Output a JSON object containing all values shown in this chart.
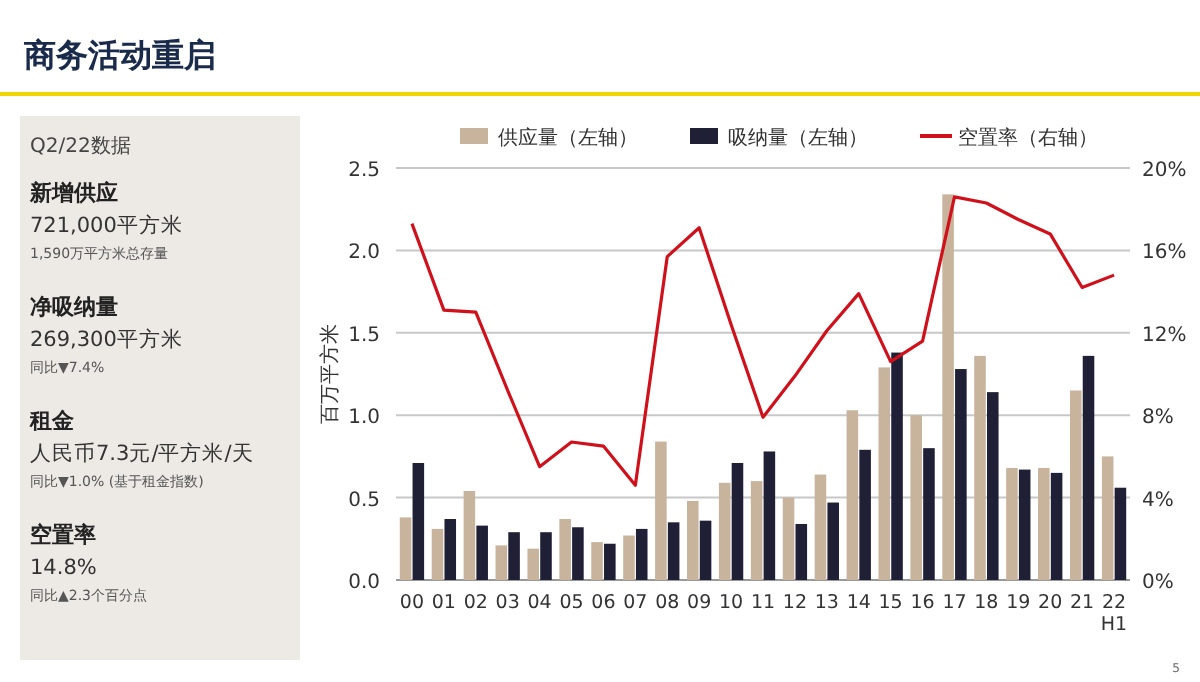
{
  "chart_data": [
    {
      "type": "bar",
      "title": "商务活动重启",
      "ylabel": "百万平方米",
      "legend": "top",
      "grid": "y",
      "categories": [
        "00",
        "01",
        "02",
        "03",
        "04",
        "05",
        "06",
        "07",
        "08",
        "09",
        "10",
        "11",
        "12",
        "13",
        "14",
        "15",
        "16",
        "17",
        "18",
        "19",
        "20",
        "21",
        "22 H1"
      ],
      "series": [
        {
          "name": "供应量（左轴）",
          "type": "bar",
          "color": "#c8b49c",
          "values": [
            0.38,
            0.31,
            0.54,
            0.21,
            0.19,
            0.37,
            0.23,
            0.27,
            0.84,
            0.48,
            0.59,
            0.6,
            0.5,
            0.64,
            1.03,
            1.29,
            1.0,
            2.34,
            1.36,
            0.68,
            0.68,
            1.15,
            0.75
          ]
        },
        {
          "name": "吸纳量（左轴）",
          "type": "bar",
          "color": "#1f2035",
          "values": [
            0.71,
            0.37,
            0.33,
            0.29,
            0.29,
            0.32,
            0.22,
            0.31,
            0.35,
            0.36,
            0.71,
            0.78,
            0.34,
            0.47,
            0.79,
            1.38,
            0.8,
            1.28,
            1.14,
            0.67,
            0.65,
            1.36,
            0.56
          ]
        },
        {
          "name": "空置率（右轴）",
          "type": "line",
          "axis": "y2",
          "color": "#d0101a",
          "values": [
            17.3,
            13.1,
            13.0,
            9.2,
            5.5,
            6.7,
            6.5,
            4.6,
            15.7,
            17.1,
            12.4,
            7.9,
            9.9,
            12.1,
            13.9,
            10.6,
            11.6,
            18.6,
            18.3,
            17.5,
            16.8,
            14.2,
            14.8
          ]
        }
      ],
      "ylim": [
        0,
        2.5
      ],
      "yticks": [
        {
          "value": 0,
          "label": "0.0"
        },
        {
          "value": 0.5,
          "label": "0.5"
        },
        {
          "value": 1,
          "label": "1.0"
        },
        {
          "value": 1.5,
          "label": "1.5"
        },
        {
          "value": 2,
          "label": "2.0"
        },
        {
          "value": 2.5,
          "label": "2.5"
        }
      ],
      "y2lim": [
        0,
        20
      ],
      "y2ticks": [
        {
          "value": 0,
          "label": "0%"
        },
        {
          "value": 4,
          "label": "4%"
        },
        {
          "value": 8,
          "label": "8%"
        },
        {
          "value": 12,
          "label": "12%"
        },
        {
          "value": 16,
          "label": "16%"
        },
        {
          "value": 20,
          "label": "20%"
        }
      ],
      "annotations": [
        "5"
      ]
    },
    {
      "type": "other",
      "title": "Q2/22数据",
      "annotations": [
        "新增供应",
        "721,000平方米",
        "1,590万平方米总存量",
        "净吸纳量",
        "269,300平方米",
        "同比▼7.4%",
        "租金",
        "人民币7.3元/平方米/天",
        "同比▼1.0% (基于租金指数)",
        "空置率",
        "14.8%",
        "同比▲2.3个百分点"
      ]
    }
  ]
}
